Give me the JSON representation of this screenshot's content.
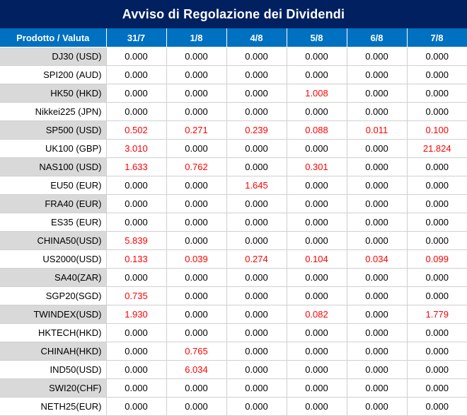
{
  "title": "Avviso di Regolazione dei Dividendi",
  "colors": {
    "title_bg": "#002060",
    "header_bg": "#0070c0",
    "alt_row_bg": "#d9d9d9",
    "highlight_text": "#ff0000"
  },
  "header": {
    "product": "Prodotto / Valuta",
    "dates": [
      "31/7",
      "1/8",
      "4/8",
      "5/8",
      "6/8",
      "7/8"
    ]
  },
  "rows": [
    {
      "product": "DJ30 (USD)",
      "values": [
        "0.000",
        "0.000",
        "0.000",
        "0.000",
        "0.000",
        "0.000"
      ],
      "highlight": [
        false,
        false,
        false,
        false,
        false,
        false
      ]
    },
    {
      "product": "SPI200 (AUD)",
      "values": [
        "0.000",
        "0.000",
        "0.000",
        "0.000",
        "0.000",
        "0.000"
      ],
      "highlight": [
        false,
        false,
        false,
        false,
        false,
        false
      ]
    },
    {
      "product": "HK50 (HKD)",
      "values": [
        "0.000",
        "0.000",
        "0.000",
        "1.008",
        "0.000",
        "0.000"
      ],
      "highlight": [
        false,
        false,
        false,
        true,
        false,
        false
      ]
    },
    {
      "product": "Nikkei225 (JPN)",
      "values": [
        "0.000",
        "0.000",
        "0.000",
        "0.000",
        "0.000",
        "0.000"
      ],
      "highlight": [
        false,
        false,
        false,
        false,
        false,
        false
      ]
    },
    {
      "product": "SP500 (USD)",
      "values": [
        "0.502",
        "0.271",
        "0.239",
        "0.088",
        "0.011",
        "0.100"
      ],
      "highlight": [
        true,
        true,
        true,
        true,
        true,
        true
      ]
    },
    {
      "product": "UK100 (GBP)",
      "values": [
        "3.010",
        "0.000",
        "0.000",
        "0.000",
        "0.000",
        "21.824"
      ],
      "highlight": [
        true,
        false,
        false,
        false,
        false,
        true
      ]
    },
    {
      "product": "NAS100 (USD)",
      "values": [
        "1.633",
        "0.762",
        "0.000",
        "0.301",
        "0.000",
        "0.000"
      ],
      "highlight": [
        true,
        true,
        false,
        true,
        false,
        false
      ]
    },
    {
      "product": "EU50 (EUR)",
      "values": [
        "0.000",
        "0.000",
        "1.645",
        "0.000",
        "0.000",
        "0.000"
      ],
      "highlight": [
        false,
        false,
        true,
        false,
        false,
        false
      ]
    },
    {
      "product": "FRA40 (EUR)",
      "values": [
        "0.000",
        "0.000",
        "0.000",
        "0.000",
        "0.000",
        "0.000"
      ],
      "highlight": [
        false,
        false,
        false,
        false,
        false,
        false
      ]
    },
    {
      "product": "ES35 (EUR)",
      "values": [
        "0.000",
        "0.000",
        "0.000",
        "0.000",
        "0.000",
        "0.000"
      ],
      "highlight": [
        false,
        false,
        false,
        false,
        false,
        false
      ]
    },
    {
      "product": "CHINA50(USD)",
      "values": [
        "5.839",
        "0.000",
        "0.000",
        "0.000",
        "0.000",
        "0.000"
      ],
      "highlight": [
        true,
        false,
        false,
        false,
        false,
        false
      ]
    },
    {
      "product": "US2000(USD)",
      "values": [
        "0.133",
        "0.039",
        "0.274",
        "0.104",
        "0.034",
        "0.099"
      ],
      "highlight": [
        true,
        true,
        true,
        true,
        true,
        true
      ]
    },
    {
      "product": "SA40(ZAR)",
      "values": [
        "0.000",
        "0.000",
        "0.000",
        "0.000",
        "0.000",
        "0.000"
      ],
      "highlight": [
        false,
        false,
        false,
        false,
        false,
        false
      ]
    },
    {
      "product": "SGP20(SGD)",
      "values": [
        "0.735",
        "0.000",
        "0.000",
        "0.000",
        "0.000",
        "0.000"
      ],
      "highlight": [
        true,
        false,
        false,
        false,
        false,
        false
      ]
    },
    {
      "product": "TWINDEX(USD)",
      "values": [
        "1.930",
        "0.000",
        "0.000",
        "0.082",
        "0.000",
        "1.779"
      ],
      "highlight": [
        true,
        false,
        false,
        true,
        false,
        true
      ]
    },
    {
      "product": "HKTECH(HKD)",
      "values": [
        "0.000",
        "0.000",
        "0.000",
        "0.000",
        "0.000",
        "0.000"
      ],
      "highlight": [
        false,
        false,
        false,
        false,
        false,
        false
      ]
    },
    {
      "product": "CHINAH(HKD)",
      "values": [
        "0.000",
        "0.765",
        "0.000",
        "0.000",
        "0.000",
        "0.000"
      ],
      "highlight": [
        false,
        true,
        false,
        false,
        false,
        false
      ]
    },
    {
      "product": "IND50(USD)",
      "values": [
        "0.000",
        "6.034",
        "0.000",
        "0.000",
        "0.000",
        "0.000"
      ],
      "highlight": [
        false,
        true,
        false,
        false,
        false,
        false
      ]
    },
    {
      "product": "SWI20(CHF)",
      "values": [
        "0.000",
        "0.000",
        "0.000",
        "0.000",
        "0.000",
        "0.000"
      ],
      "highlight": [
        false,
        false,
        false,
        false,
        false,
        false
      ]
    },
    {
      "product": "NETH25(EUR)",
      "values": [
        "0.000",
        "0.000",
        "0.000",
        "0.000",
        "0.000",
        "0.000"
      ],
      "highlight": [
        false,
        false,
        false,
        false,
        false,
        false
      ]
    }
  ]
}
